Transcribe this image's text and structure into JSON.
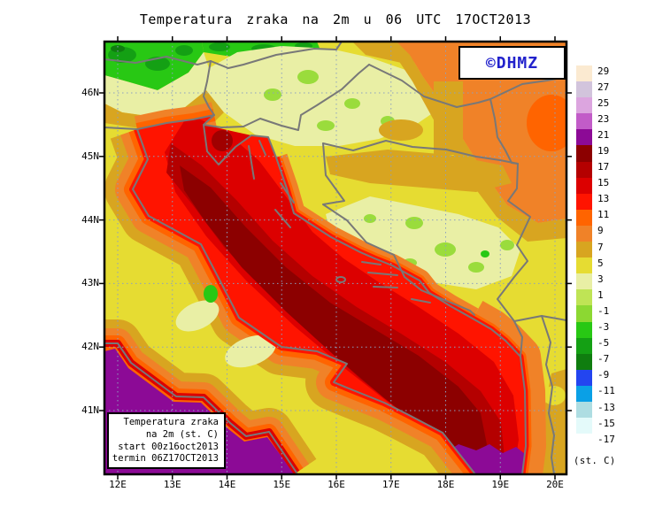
{
  "title": "Temperatura zraka na 2m u 06 UTC 17OCT2013",
  "watermark": {
    "label": "©DHMZ",
    "color": "#2222CC"
  },
  "info_box": {
    "line1": "Temperatura zraka",
    "line2": "na 2m (st. C)",
    "line3": "start 00z16oct2013",
    "line4": "termin 06Z17OCT2013"
  },
  "axes": {
    "lat_ticks": [
      "46N",
      "45N",
      "44N",
      "43N",
      "42N",
      "41N"
    ],
    "lon_ticks": [
      "12E",
      "13E",
      "14E",
      "15E",
      "16E",
      "17E",
      "18E",
      "19E",
      "20E"
    ]
  },
  "colorbar": {
    "unit": "(st. C)",
    "entries": [
      {
        "value": "29",
        "color": "#FBEAD1"
      },
      {
        "value": "27",
        "color": "#D2C4DC"
      },
      {
        "value": "25",
        "color": "#DCA5DF"
      },
      {
        "value": "23",
        "color": "#C25CC8"
      },
      {
        "value": "21",
        "color": "#8C0A96"
      },
      {
        "value": "19",
        "color": "#8C0000"
      },
      {
        "value": "17",
        "color": "#B40000"
      },
      {
        "value": "15",
        "color": "#DC0000"
      },
      {
        "value": "13",
        "color": "#FF1400"
      },
      {
        "value": "11",
        "color": "#FF6400"
      },
      {
        "value": "9",
        "color": "#F08228"
      },
      {
        "value": "7",
        "color": "#D8A520"
      },
      {
        "value": "5",
        "color": "#E6DC32"
      },
      {
        "value": "3",
        "color": "#E9EFA5"
      },
      {
        "value": "1",
        "color": "#BFE455"
      },
      {
        "value": "-1",
        "color": "#8CD832"
      },
      {
        "value": "-3",
        "color": "#28C814"
      },
      {
        "value": "-5",
        "color": "#14A014"
      },
      {
        "value": "-7",
        "color": "#0F7D0F"
      },
      {
        "value": "-9",
        "color": "#2345F0"
      },
      {
        "value": "-11",
        "color": "#0AA0E6"
      },
      {
        "value": "-13",
        "color": "#AEDDE2"
      },
      {
        "value": "-15",
        "color": "#E4FAFA"
      },
      {
        "value": "-17",
        "color": "#FFFFFF"
      }
    ]
  },
  "chart_data": {
    "type": "heatmap",
    "title": "Temperatura zraka na 2m u 06 UTC 17OCT2013",
    "x_tick_labels": [
      "12E",
      "13E",
      "14E",
      "15E",
      "16E",
      "17E",
      "18E",
      "19E",
      "20E"
    ],
    "y_tick_labels": [
      "46N",
      "45N",
      "44N",
      "43N",
      "42N",
      "41N"
    ],
    "scale_values": [
      29,
      27,
      25,
      23,
      21,
      19,
      17,
      15,
      13,
      11,
      9,
      7,
      5,
      3,
      1,
      -1,
      -3,
      -5,
      -7,
      -9,
      -11,
      -13,
      -15,
      -17
    ],
    "scale_unit": "(st. C)",
    "legend_position": "right",
    "grid": "dotted"
  }
}
